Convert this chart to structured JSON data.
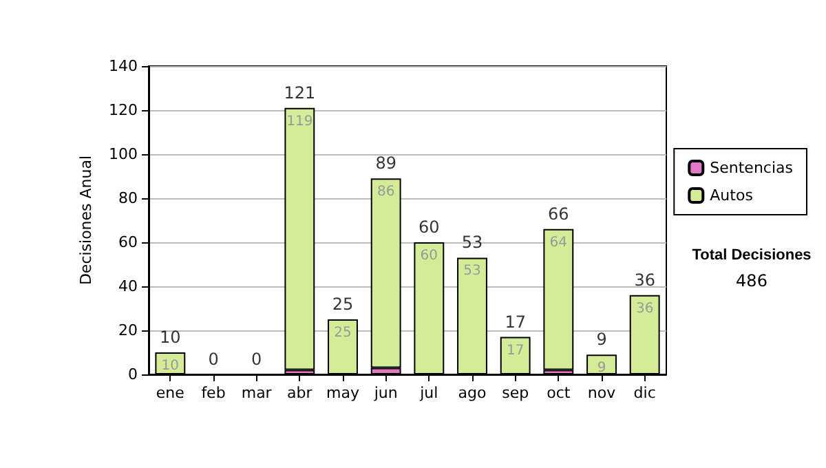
{
  "chart_data": {
    "type": "bar",
    "stacked": true,
    "ylabel": "Decisiones Anual",
    "categories": [
      "ene",
      "feb",
      "mar",
      "abr",
      "may",
      "jun",
      "jul",
      "ago",
      "sep",
      "oct",
      "nov",
      "dic"
    ],
    "series": [
      {
        "name": "Sentencias",
        "color": "#e07ac4",
        "values": [
          0,
          0,
          0,
          2,
          0,
          3,
          0,
          0,
          0,
          2,
          0,
          0
        ]
      },
      {
        "name": "Autos",
        "color": "#d4ec98",
        "values": [
          10,
          0,
          0,
          119,
          25,
          86,
          60,
          53,
          17,
          64,
          9,
          36
        ],
        "value_labels": [
          "10",
          null,
          null,
          "119",
          "25",
          "86",
          "60",
          "53",
          "17",
          "64",
          "9",
          "36"
        ]
      }
    ],
    "totals": [
      "10",
      "0",
      "0",
      "121",
      "25",
      "89",
      "60",
      "53",
      "17",
      "66",
      "9",
      "36"
    ],
    "ylim": [
      0,
      140
    ],
    "yticks": [
      0,
      20,
      40,
      60,
      80,
      100,
      120,
      140
    ],
    "grid": "y",
    "legend": "right",
    "annotations": [
      "Total Decisiones",
      "486"
    ]
  }
}
